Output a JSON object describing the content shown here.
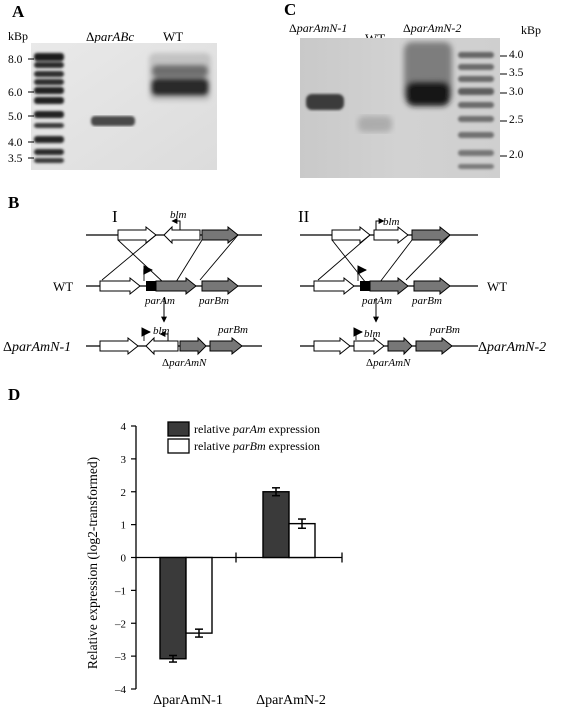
{
  "panels": {
    "A": {
      "letter": "A",
      "unit": "kBp",
      "ladder": [
        "8.0",
        "6.0",
        "5.0",
        "4.0",
        "3.5"
      ],
      "lanes": {
        "mutant_prefix": "Δ",
        "mutant_italic": "parABc",
        "wt": "WT"
      }
    },
    "C": {
      "letter": "C",
      "unit": "kBp",
      "ladder": [
        "4.0",
        "3.5",
        "3.0",
        "2.5",
        "2.0"
      ],
      "lanes": {
        "m1_prefix": "Δ",
        "m1_italic": "parAmN-1",
        "wt": "WT",
        "m2_prefix": "Δ",
        "m2_italic": "parAmN-2"
      }
    },
    "B": {
      "letter": "B",
      "scheme_I": "I",
      "scheme_II": "II",
      "wt_label": "WT",
      "gene_blm": "blm",
      "gene_parAm": "parAm",
      "gene_parBm": "parBm",
      "deleted_prefix": "Δ",
      "deleted_italic": "parAmN",
      "mutant1_prefix": "Δ",
      "mutant1_italic": "parAmN-1",
      "mutant2_prefix": "Δ",
      "mutant2_italic": "parAmN-2"
    },
    "D": {
      "letter": "D"
    }
  },
  "chart_data": {
    "type": "bar",
    "categories": [
      "ΔparAmN-1",
      "ΔparAmN-2"
    ],
    "series": [
      {
        "name": "relative parAm expression",
        "values": [
          -3.08,
          2.0
        ],
        "errors": [
          0.1,
          0.12
        ],
        "color": "#3a3a3a"
      },
      {
        "name": "relative parBm expression",
        "values": [
          -2.3,
          1.03
        ],
        "errors": [
          0.12,
          0.14
        ],
        "color": "#ffffff"
      }
    ],
    "legend_prefix": "relative ",
    "legend_italic": [
      "parAm",
      "parBm"
    ],
    "legend_suffix": " expression",
    "ylabel": "Relative expression (log2-transformed)",
    "xlabel": "",
    "ylim": [
      -4,
      4
    ],
    "yticks": [
      "4",
      "3",
      "2",
      "1",
      "0",
      "–1",
      "–2",
      "–3",
      "–4"
    ],
    "ytick_values": [
      4,
      3,
      2,
      1,
      0,
      -1,
      -2,
      -3,
      -4
    ],
    "legend_position": "top-center",
    "grid": false
  }
}
